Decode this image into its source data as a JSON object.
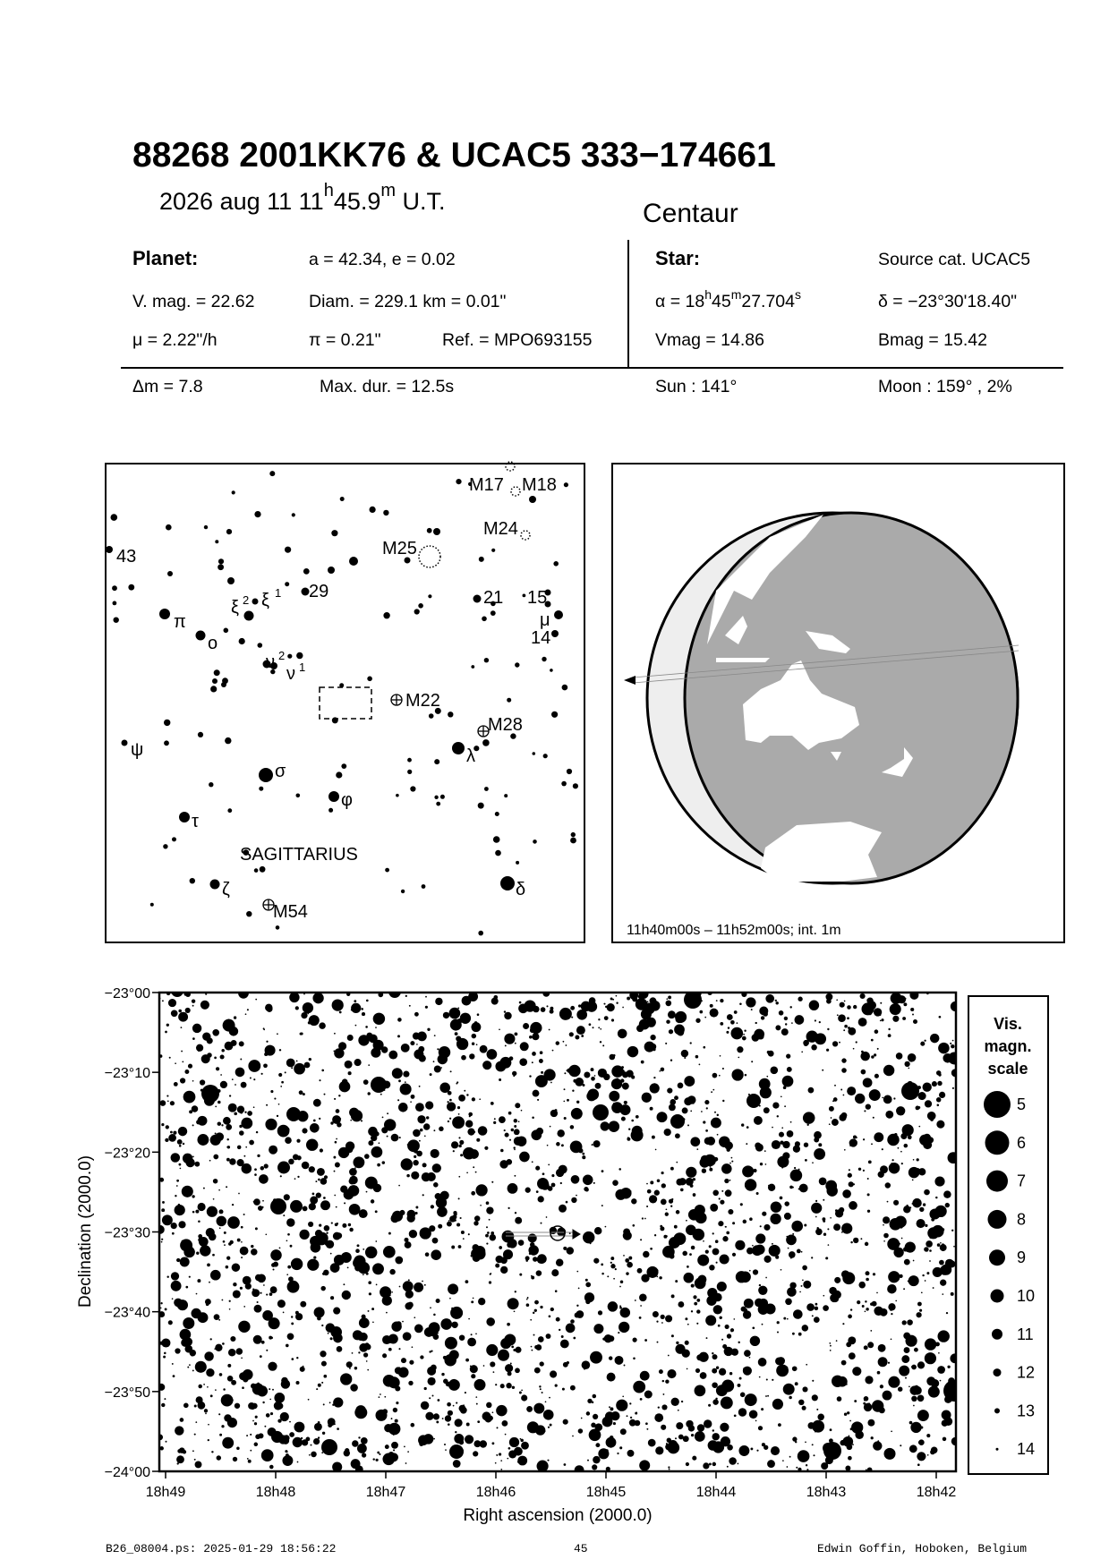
{
  "header": {
    "title": "88268 2001KK76  &  UCAC5 333−174661",
    "date_prefix": "2026 aug 11  11",
    "date_h": "h",
    "date_min": "45.9",
    "date_m": "m",
    "date_suffix": " U.T.",
    "object_class": "Centaur"
  },
  "planet": {
    "label": "Planet:",
    "orbit": "a = 42.34, e = 0.02",
    "vmag": "V. mag. = 22.62",
    "diam": "Diam. = 229.1 km = 0.01\"",
    "mu": "μ =  2.22\"/h",
    "parallax": "π =  0.21\"",
    "ref": "Ref. = MPO693155"
  },
  "star": {
    "label": "Star:",
    "source": "Source cat.  UCAC5",
    "ra_prefix": "α = 18",
    "ra_h": "h",
    "ra_min": "45",
    "ra_m": "m",
    "ra_sec": "27.704",
    "ra_s": "s",
    "dec": "δ = −23°30'18.40\"",
    "vmag": "Vmag = 14.86",
    "bmag": "Bmag = 15.42"
  },
  "event": {
    "delta_m": "Δm = 7.8",
    "max_dur": "Max. dur. = 12.5s",
    "sun": "Sun : 141°",
    "moon": "Moon : 159° ,  2%"
  },
  "finder_chart": {
    "constellation": "SAGITTARIUS",
    "labels": {
      "n43": "43",
      "pi": "π",
      "omicron": "o",
      "xi2": "ξ",
      "xi2_sup": "2",
      "xi1": "ξ",
      "xi1_sup": "1",
      "n29": "29",
      "nu2": "ν",
      "nu2_sup": "2",
      "nu1": "ν",
      "nu1_sup": "1",
      "m25": "M25",
      "m17": "M17",
      "m18": "M18",
      "m24": "M24",
      "n21": "21",
      "n15": "15",
      "mu": "μ",
      "n14": "14",
      "m22": "M22",
      "m28": "M28",
      "lambda": "λ",
      "psi": "ψ",
      "sigma": "σ",
      "phi": "φ",
      "tau": "τ",
      "zeta": "ζ",
      "m54": "M54",
      "delta": "δ"
    }
  },
  "globe": {
    "caption": "11h40m00s – 11h52m00s; int.  1m",
    "colors": {
      "night": "#aaaaaa",
      "day": "#eeeeee",
      "land": "#ffffff"
    }
  },
  "star_chart": {
    "y_ticks": [
      "−23°00",
      "−23°10",
      "−23°20",
      "−23°30",
      "−23°40",
      "−23°50",
      "−24°00"
    ],
    "x_ticks": [
      "18h49",
      "18h48",
      "18h47",
      "18h46",
      "18h45",
      "18h44",
      "18h43",
      "18h42"
    ],
    "xlabel": "Right ascension (2000.0)",
    "ylabel": "Declination (2000.0)",
    "legend": {
      "title": [
        "Vis.",
        "magn.",
        "scale"
      ],
      "mags": [
        "5",
        "6",
        "7",
        "8",
        "9",
        "10",
        "11",
        "12",
        "13",
        "14"
      ]
    }
  },
  "footer": {
    "file": "B26_08004.ps: 2025-01-29 18:56:22",
    "page": "45",
    "author": "Edwin Goffin, Hoboken, Belgium"
  }
}
